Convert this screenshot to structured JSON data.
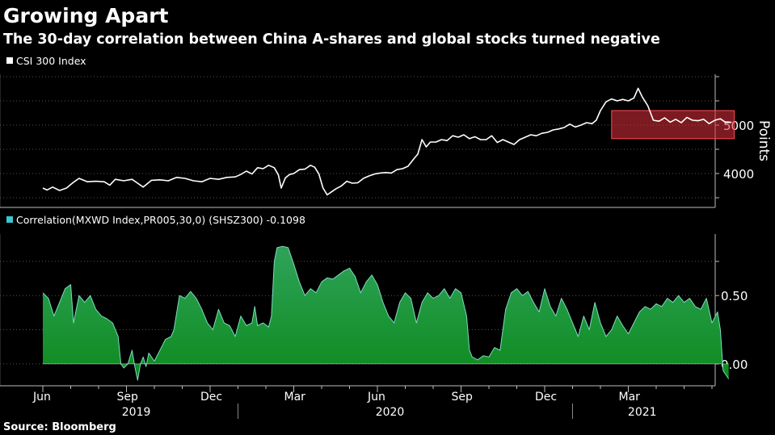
{
  "chart_data": [
    {
      "type": "line",
      "title": "Growing Apart",
      "subtitle": "The 30-day correlation between China A-shares and global stocks turned negative",
      "legend": "CSI 300 Index",
      "ylabel": "Points",
      "yticks": [
        4000,
        5000
      ],
      "ylim": [
        3300,
        6050
      ],
      "xlim": [
        0,
        25.9
      ],
      "highlight": {
        "x_start": 20.4,
        "x_end": 24.8,
        "y_low": 4720,
        "y_high": 5300,
        "color": "#e0303a"
      },
      "series": [
        {
          "name": "CSI 300 Index",
          "color": "#ffffff",
          "points": [
            [
              0.0,
              3700
            ],
            [
              0.15,
              3660
            ],
            [
              0.35,
              3720
            ],
            [
              0.6,
              3650
            ],
            [
              0.85,
              3700
            ],
            [
              1.1,
              3820
            ],
            [
              1.3,
              3900
            ],
            [
              1.6,
              3830
            ],
            [
              1.9,
              3840
            ],
            [
              2.2,
              3830
            ],
            [
              2.4,
              3760
            ],
            [
              2.6,
              3880
            ],
            [
              2.9,
              3850
            ],
            [
              3.2,
              3880
            ],
            [
              3.4,
              3800
            ],
            [
              3.6,
              3720
            ],
            [
              3.9,
              3860
            ],
            [
              4.2,
              3870
            ],
            [
              4.5,
              3850
            ],
            [
              4.8,
              3920
            ],
            [
              5.1,
              3900
            ],
            [
              5.4,
              3850
            ],
            [
              5.7,
              3830
            ],
            [
              6.0,
              3900
            ],
            [
              6.3,
              3880
            ],
            [
              6.6,
              3920
            ],
            [
              6.9,
              3930
            ],
            [
              7.1,
              3980
            ],
            [
              7.3,
              4050
            ],
            [
              7.5,
              3990
            ],
            [
              7.7,
              4120
            ],
            [
              7.9,
              4100
            ],
            [
              8.1,
              4170
            ],
            [
              8.3,
              4120
            ],
            [
              8.45,
              3970
            ],
            [
              8.55,
              3700
            ],
            [
              8.7,
              3910
            ],
            [
              8.85,
              3980
            ],
            [
              9.0,
              4000
            ],
            [
              9.2,
              4080
            ],
            [
              9.4,
              4090
            ],
            [
              9.6,
              4170
            ],
            [
              9.75,
              4130
            ],
            [
              9.9,
              3990
            ],
            [
              10.05,
              3700
            ],
            [
              10.2,
              3560
            ],
            [
              10.35,
              3620
            ],
            [
              10.5,
              3680
            ],
            [
              10.7,
              3740
            ],
            [
              10.9,
              3840
            ],
            [
              11.1,
              3800
            ],
            [
              11.3,
              3810
            ],
            [
              11.5,
              3900
            ],
            [
              11.7,
              3950
            ],
            [
              11.9,
              3990
            ],
            [
              12.1,
              4010
            ],
            [
              12.3,
              4020
            ],
            [
              12.5,
              4010
            ],
            [
              12.7,
              4080
            ],
            [
              12.9,
              4100
            ],
            [
              13.1,
              4150
            ],
            [
              13.3,
              4300
            ],
            [
              13.45,
              4400
            ],
            [
              13.6,
              4700
            ],
            [
              13.75,
              4550
            ],
            [
              13.9,
              4650
            ],
            [
              14.1,
              4650
            ],
            [
              14.3,
              4700
            ],
            [
              14.5,
              4680
            ],
            [
              14.7,
              4780
            ],
            [
              14.9,
              4750
            ],
            [
              15.1,
              4800
            ],
            [
              15.3,
              4720
            ],
            [
              15.5,
              4760
            ],
            [
              15.7,
              4700
            ],
            [
              15.9,
              4700
            ],
            [
              16.1,
              4780
            ],
            [
              16.3,
              4640
            ],
            [
              16.5,
              4700
            ],
            [
              16.7,
              4650
            ],
            [
              16.9,
              4600
            ],
            [
              17.1,
              4700
            ],
            [
              17.3,
              4750
            ],
            [
              17.5,
              4800
            ],
            [
              17.7,
              4780
            ],
            [
              17.9,
              4830
            ],
            [
              18.1,
              4850
            ],
            [
              18.3,
              4900
            ],
            [
              18.5,
              4920
            ],
            [
              18.7,
              4950
            ],
            [
              18.9,
              5020
            ],
            [
              19.1,
              4960
            ],
            [
              19.3,
              5000
            ],
            [
              19.5,
              5050
            ],
            [
              19.7,
              5030
            ],
            [
              19.85,
              5100
            ],
            [
              20.0,
              5300
            ],
            [
              20.2,
              5480
            ],
            [
              20.4,
              5540
            ],
            [
              20.6,
              5500
            ],
            [
              20.8,
              5530
            ],
            [
              21.0,
              5500
            ],
            [
              21.2,
              5560
            ],
            [
              21.35,
              5760
            ],
            [
              21.5,
              5580
            ],
            [
              21.7,
              5400
            ],
            [
              21.9,
              5100
            ],
            [
              22.1,
              5080
            ],
            [
              22.3,
              5150
            ],
            [
              22.5,
              5060
            ],
            [
              22.7,
              5120
            ],
            [
              22.9,
              5050
            ],
            [
              23.1,
              5160
            ],
            [
              23.3,
              5100
            ],
            [
              23.5,
              5090
            ],
            [
              23.7,
              5120
            ],
            [
              23.9,
              5030
            ],
            [
              24.1,
              5100
            ],
            [
              24.3,
              5130
            ],
            [
              24.5,
              5050
            ],
            [
              24.7,
              5060
            ]
          ]
        }
      ]
    },
    {
      "type": "area",
      "legend": "Correlation(MXWD Index,PR005,30,0) (SHSZ300) -0.1098",
      "yticks": [
        "0.50",
        "0.00"
      ],
      "ylim": [
        -0.16,
        0.95
      ],
      "xlim": [
        0,
        25.9
      ],
      "x_axis": {
        "months": [
          "Jun",
          "Sep",
          "Dec",
          "Mar",
          "Jun",
          "Sep",
          "Dec",
          "Mar"
        ],
        "month_positions": [
          0,
          3,
          6,
          9,
          12,
          15,
          18,
          21
        ],
        "years": [
          "2019",
          "2020",
          "2021"
        ],
        "year_positions": [
          3.35,
          12.45,
          21.5
        ]
      },
      "series": [
        {
          "name": "Correlation",
          "color": "#12a32b",
          "points": [
            [
              0.0,
              0.52
            ],
            [
              0.2,
              0.48
            ],
            [
              0.4,
              0.35
            ],
            [
              0.6,
              0.45
            ],
            [
              0.8,
              0.55
            ],
            [
              1.0,
              0.58
            ],
            [
              1.1,
              0.3
            ],
            [
              1.3,
              0.5
            ],
            [
              1.5,
              0.45
            ],
            [
              1.7,
              0.5
            ],
            [
              1.9,
              0.4
            ],
            [
              2.1,
              0.35
            ],
            [
              2.3,
              0.33
            ],
            [
              2.5,
              0.3
            ],
            [
              2.7,
              0.2
            ],
            [
              2.8,
              0.0
            ],
            [
              2.9,
              -0.03
            ],
            [
              3.05,
              0.0
            ],
            [
              3.2,
              0.1
            ],
            [
              3.3,
              -0.02
            ],
            [
              3.4,
              -0.12
            ],
            [
              3.5,
              0.0
            ],
            [
              3.6,
              0.05
            ],
            [
              3.7,
              -0.02
            ],
            [
              3.8,
              0.08
            ],
            [
              4.0,
              0.02
            ],
            [
              4.2,
              0.1
            ],
            [
              4.4,
              0.18
            ],
            [
              4.6,
              0.2
            ],
            [
              4.7,
              0.25
            ],
            [
              4.9,
              0.5
            ],
            [
              5.1,
              0.48
            ],
            [
              5.3,
              0.53
            ],
            [
              5.5,
              0.48
            ],
            [
              5.7,
              0.4
            ],
            [
              5.9,
              0.3
            ],
            [
              6.1,
              0.25
            ],
            [
              6.3,
              0.4
            ],
            [
              6.5,
              0.3
            ],
            [
              6.7,
              0.28
            ],
            [
              6.9,
              0.2
            ],
            [
              7.1,
              0.35
            ],
            [
              7.3,
              0.28
            ],
            [
              7.5,
              0.3
            ],
            [
              7.6,
              0.42
            ],
            [
              7.7,
              0.28
            ],
            [
              7.9,
              0.3
            ],
            [
              8.1,
              0.27
            ],
            [
              8.2,
              0.35
            ],
            [
              8.3,
              0.75
            ],
            [
              8.4,
              0.85
            ],
            [
              8.6,
              0.86
            ],
            [
              8.8,
              0.85
            ],
            [
              9.0,
              0.73
            ],
            [
              9.2,
              0.6
            ],
            [
              9.4,
              0.5
            ],
            [
              9.6,
              0.55
            ],
            [
              9.8,
              0.52
            ],
            [
              10.0,
              0.6
            ],
            [
              10.2,
              0.63
            ],
            [
              10.4,
              0.62
            ],
            [
              10.6,
              0.65
            ],
            [
              10.8,
              0.68
            ],
            [
              11.0,
              0.7
            ],
            [
              11.2,
              0.64
            ],
            [
              11.4,
              0.52
            ],
            [
              11.6,
              0.6
            ],
            [
              11.8,
              0.65
            ],
            [
              12.0,
              0.58
            ],
            [
              12.2,
              0.45
            ],
            [
              12.4,
              0.35
            ],
            [
              12.6,
              0.3
            ],
            [
              12.8,
              0.45
            ],
            [
              13.0,
              0.52
            ],
            [
              13.2,
              0.48
            ],
            [
              13.4,
              0.3
            ],
            [
              13.6,
              0.45
            ],
            [
              13.8,
              0.52
            ],
            [
              14.0,
              0.48
            ],
            [
              14.2,
              0.5
            ],
            [
              14.4,
              0.55
            ],
            [
              14.6,
              0.48
            ],
            [
              14.8,
              0.55
            ],
            [
              15.0,
              0.52
            ],
            [
              15.2,
              0.35
            ],
            [
              15.3,
              0.1
            ],
            [
              15.4,
              0.05
            ],
            [
              15.6,
              0.03
            ],
            [
              15.8,
              0.06
            ],
            [
              16.0,
              0.05
            ],
            [
              16.2,
              0.12
            ],
            [
              16.4,
              0.1
            ],
            [
              16.6,
              0.4
            ],
            [
              16.8,
              0.52
            ],
            [
              17.0,
              0.55
            ],
            [
              17.2,
              0.5
            ],
            [
              17.4,
              0.53
            ],
            [
              17.6,
              0.45
            ],
            [
              17.8,
              0.38
            ],
            [
              18.0,
              0.55
            ],
            [
              18.2,
              0.42
            ],
            [
              18.4,
              0.35
            ],
            [
              18.6,
              0.48
            ],
            [
              18.8,
              0.4
            ],
            [
              19.0,
              0.3
            ],
            [
              19.2,
              0.2
            ],
            [
              19.4,
              0.35
            ],
            [
              19.6,
              0.25
            ],
            [
              19.8,
              0.45
            ],
            [
              20.0,
              0.3
            ],
            [
              20.2,
              0.2
            ],
            [
              20.4,
              0.25
            ],
            [
              20.6,
              0.35
            ],
            [
              20.8,
              0.28
            ],
            [
              21.0,
              0.22
            ],
            [
              21.2,
              0.3
            ],
            [
              21.4,
              0.38
            ],
            [
              21.6,
              0.42
            ],
            [
              21.8,
              0.4
            ],
            [
              22.0,
              0.44
            ],
            [
              22.2,
              0.42
            ],
            [
              22.4,
              0.48
            ],
            [
              22.6,
              0.45
            ],
            [
              22.8,
              0.5
            ],
            [
              23.0,
              0.45
            ],
            [
              23.2,
              0.48
            ],
            [
              23.4,
              0.42
            ],
            [
              23.6,
              0.4
            ],
            [
              23.8,
              0.48
            ],
            [
              24.0,
              0.3
            ],
            [
              24.2,
              0.38
            ],
            [
              24.3,
              0.25
            ],
            [
              24.4,
              -0.05
            ],
            [
              24.6,
              -0.1098
            ]
          ]
        }
      ]
    }
  ],
  "source": "Source: Bloomberg"
}
